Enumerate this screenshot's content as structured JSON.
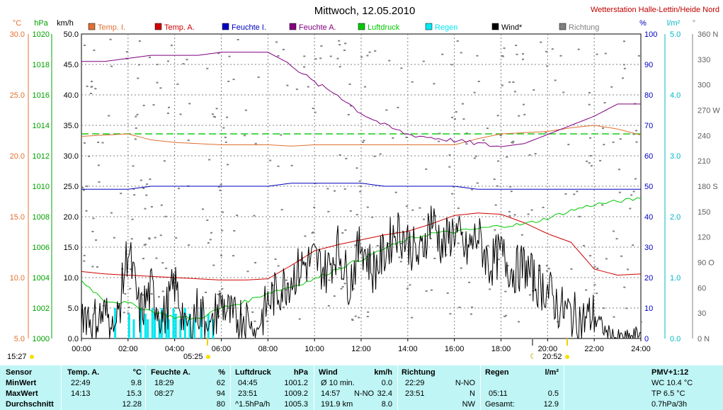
{
  "header": {
    "title": "Mittwoch, 12.05.2010",
    "station": "Wetterstation Halle-Lettin/Heide Nord"
  },
  "axes_units": {
    "temp": "°C",
    "pressure": "hPa",
    "wind": "km/h",
    "humidity": "%",
    "rain": "l/m²",
    "direction": "°"
  },
  "colors": {
    "temp_in": "#e07030",
    "temp_out": "#d00000",
    "hum_in": "#0000c0",
    "hum_out": "#800080",
    "pressure": "#00c800",
    "rain": "#00e8f0",
    "wind": "#000000",
    "direction": "#808080"
  },
  "legend": [
    {
      "label": "Temp. I.",
      "color": "#e07030"
    },
    {
      "label": "Temp. A.",
      "color": "#d00000"
    },
    {
      "label": "Feuchte I.",
      "color": "#0000c0"
    },
    {
      "label": "Feuchte A.",
      "color": "#800080"
    },
    {
      "label": "Luftdruck",
      "color": "#00c800"
    },
    {
      "label": "Regen",
      "color": "#00e8f0"
    },
    {
      "label": "Wind*",
      "color": "#000000"
    },
    {
      "label": "Richtung",
      "color": "#808080"
    }
  ],
  "sun": {
    "sunrise": "05:25",
    "sunset": "20:52",
    "moonrise": "15:27",
    "moonset": "20:52"
  },
  "chart_data": {
    "type": "line",
    "title": "Mittwoch, 12.05.2010",
    "x_ticks": [
      "00:00",
      "02:00",
      "04:00",
      "06:00",
      "08:00",
      "10:00",
      "12:00",
      "14:00",
      "16:00",
      "18:00",
      "20:00",
      "22:00",
      "24:00"
    ],
    "xlim": [
      0,
      24
    ],
    "y_axes": {
      "temp": {
        "ticks": [
          "5.0",
          "10.0",
          "15.0",
          "20.0",
          "25.0",
          "30.0"
        ],
        "ylim": [
          5,
          30
        ]
      },
      "pressure": {
        "ticks": [
          "1000",
          "1002",
          "1004",
          "1006",
          "1008",
          "1010",
          "1012",
          "1014",
          "1016",
          "1018",
          "1020"
        ],
        "ylim": [
          1000,
          1020
        ]
      },
      "wind": {
        "ticks": [
          "0.0",
          "5.0",
          "10.0",
          "15.0",
          "20.0",
          "25.0",
          "30.0",
          "35.0",
          "40.0",
          "45.0",
          "50.0"
        ],
        "ylim": [
          0,
          50
        ]
      },
      "humidity": {
        "ticks": [
          "0",
          "10",
          "20",
          "30",
          "40",
          "50",
          "60",
          "70",
          "80",
          "90",
          "100"
        ],
        "ylim": [
          0,
          100
        ]
      },
      "rain": {
        "ticks": [
          "0.0",
          "1.0",
          "2.0",
          "3.0",
          "4.0",
          "5.0"
        ],
        "ylim": [
          0,
          5
        ]
      },
      "direction": {
        "ticks": [
          "0 N",
          "30",
          "60",
          "90 O",
          "120",
          "150",
          "180 S",
          "210",
          "240",
          "270 W",
          "300",
          "330",
          "360 N"
        ],
        "ylim": [
          0,
          360
        ]
      }
    },
    "series": [
      {
        "name": "Temp. I.",
        "axis": "temp",
        "x": [
          0,
          1,
          2,
          3,
          4,
          5,
          6,
          7,
          8,
          9,
          10,
          11,
          12,
          13,
          14,
          15,
          16,
          17,
          18,
          19,
          20,
          21,
          22,
          23,
          24
        ],
        "values": [
          21.6,
          21.7,
          21.8,
          21.3,
          21.1,
          21.0,
          20.9,
          20.9,
          20.9,
          20.8,
          20.9,
          20.9,
          20.9,
          20.9,
          20.9,
          20.9,
          20.9,
          21.4,
          21.8,
          21.9,
          22.0,
          22.3,
          22.5,
          22.2,
          21.7
        ]
      },
      {
        "name": "Temp. A.",
        "axis": "temp",
        "x": [
          0,
          1,
          2,
          3,
          4,
          5,
          6,
          7,
          8,
          9,
          10,
          11,
          12,
          13,
          14,
          15,
          16,
          17,
          18,
          19,
          20,
          21,
          22,
          23,
          24
        ],
        "values": [
          10.5,
          10.3,
          10.2,
          10.1,
          10.0,
          9.9,
          9.8,
          9.8,
          9.9,
          11.0,
          12.2,
          12.7,
          13.1,
          13.5,
          13.8,
          14.4,
          15.1,
          15.3,
          15.2,
          14.5,
          13.6,
          12.9,
          10.7,
          10.2,
          10.3
        ]
      },
      {
        "name": "Feuchte I.",
        "axis": "humidity",
        "x": [
          0,
          1,
          2,
          3,
          4,
          5,
          6,
          7,
          8,
          9,
          10,
          11,
          12,
          13,
          14,
          15,
          16,
          17,
          18,
          19,
          20,
          21,
          22,
          23,
          24
        ],
        "values": [
          49,
          49,
          49,
          50,
          50,
          50,
          50,
          50,
          50,
          51,
          51,
          51,
          51,
          50,
          50,
          50,
          50,
          49,
          49,
          49,
          49,
          49,
          49,
          49,
          49
        ]
      },
      {
        "name": "Feuchte A.",
        "axis": "humidity",
        "x": [
          0,
          1,
          2,
          3,
          4,
          5,
          6,
          7,
          8,
          9,
          10,
          11,
          12,
          13,
          14,
          15,
          16,
          17,
          18,
          19,
          20,
          21,
          22,
          23,
          24
        ],
        "values": [
          91,
          91,
          92,
          93,
          93,
          93,
          94,
          94,
          94,
          90,
          84,
          80,
          74,
          70,
          67,
          66,
          65,
          64,
          63,
          64,
          67,
          70,
          73,
          77,
          77
        ]
      },
      {
        "name": "Luftdruck",
        "axis": "pressure",
        "x": [
          0,
          1,
          2,
          3,
          4,
          5,
          6,
          7,
          8,
          9,
          10,
          11,
          12,
          13,
          14,
          15,
          16,
          17,
          18,
          19,
          20,
          21,
          22,
          23,
          24
        ],
        "values": [
          1003.8,
          1002.5,
          1002.3,
          1001.8,
          1001.4,
          1001.3,
          1002.0,
          1002.4,
          1003.0,
          1003.4,
          1003.9,
          1004.6,
          1005.2,
          1005.9,
          1006.5,
          1006.9,
          1007.0,
          1007.2,
          1007.4,
          1007.5,
          1007.9,
          1008.4,
          1008.8,
          1009.0,
          1009.2
        ]
      },
      {
        "name": "Wind*",
        "axis": "wind",
        "x": [
          0,
          0.5,
          1,
          1.5,
          2,
          2.5,
          3,
          3.5,
          4,
          4.5,
          5,
          5.5,
          6,
          6.5,
          7,
          7.5,
          8,
          8.5,
          9,
          9.5,
          10,
          10.5,
          11,
          11.5,
          12,
          12.5,
          13,
          13.5,
          14,
          14.5,
          15,
          15.5,
          16,
          16.5,
          17,
          17.5,
          18,
          18.5,
          19,
          19.5,
          20,
          20.5,
          21,
          21.5,
          22,
          22.5,
          23,
          23.5,
          24
        ],
        "values": [
          5,
          3,
          4,
          2,
          15,
          4,
          8,
          3,
          9,
          2,
          5,
          2,
          6,
          3,
          4,
          1,
          6,
          8,
          10,
          12,
          13,
          11,
          15,
          9,
          16,
          11,
          14,
          18,
          16,
          13,
          20,
          15,
          18,
          14,
          17,
          12,
          14,
          11,
          12,
          9,
          8,
          5,
          4,
          3,
          4,
          1,
          0,
          0,
          1
        ]
      }
    ],
    "reference_lines": [
      {
        "axis": "temp",
        "value": 21.8,
        "style": "dashed",
        "color": "#00c800"
      }
    ]
  },
  "stats": {
    "row_labels": {
      "sensor": "Sensor",
      "min": "MinWert",
      "max": "MaxWert",
      "avg": "Durchschnitt"
    },
    "temp": {
      "header": "Temp. A.",
      "unit": "°C",
      "min_time": "22:49",
      "min": "9.8",
      "max_time": "14:13",
      "max": "15.3",
      "avg": "12.28"
    },
    "hum": {
      "header": "Feuchte A.",
      "unit": "%",
      "min_time": "18:29",
      "min": "62",
      "max_time": "08:27",
      "max": "94",
      "avg": "80"
    },
    "press": {
      "header": "Luftdruck",
      "unit": "hPa",
      "min_time": "04:45",
      "min": "1001.2",
      "max_time": "23:51",
      "max": "1009.2",
      "avg_label": "^1.5hPa/h",
      "avg": "1005.3"
    },
    "wind": {
      "header": "Wind",
      "unit": "km/h",
      "min_label": "Ø 10 min.",
      "min": "0.0",
      "max_time": "14:57",
      "max_dir": "N-NO",
      "max": "32.4",
      "avg_label": "191.9 km",
      "avg": "8.0"
    },
    "dir": {
      "header": "Richtung",
      "min_time": "22:29",
      "min": "N-NO",
      "max_time": "23:51",
      "max": "N",
      "avg": "NW"
    },
    "rain": {
      "header": "Regen",
      "unit": "l/m²",
      "max_time": "05:11",
      "max": "0.5",
      "avg_label": "Gesamt:",
      "avg": "12.9"
    },
    "pmv": {
      "header": "PMV+1:12",
      "l1": "WC 10.4 °C",
      "l2": "TP 6.5 °C",
      "l3": "0.7hPa/3h"
    }
  }
}
